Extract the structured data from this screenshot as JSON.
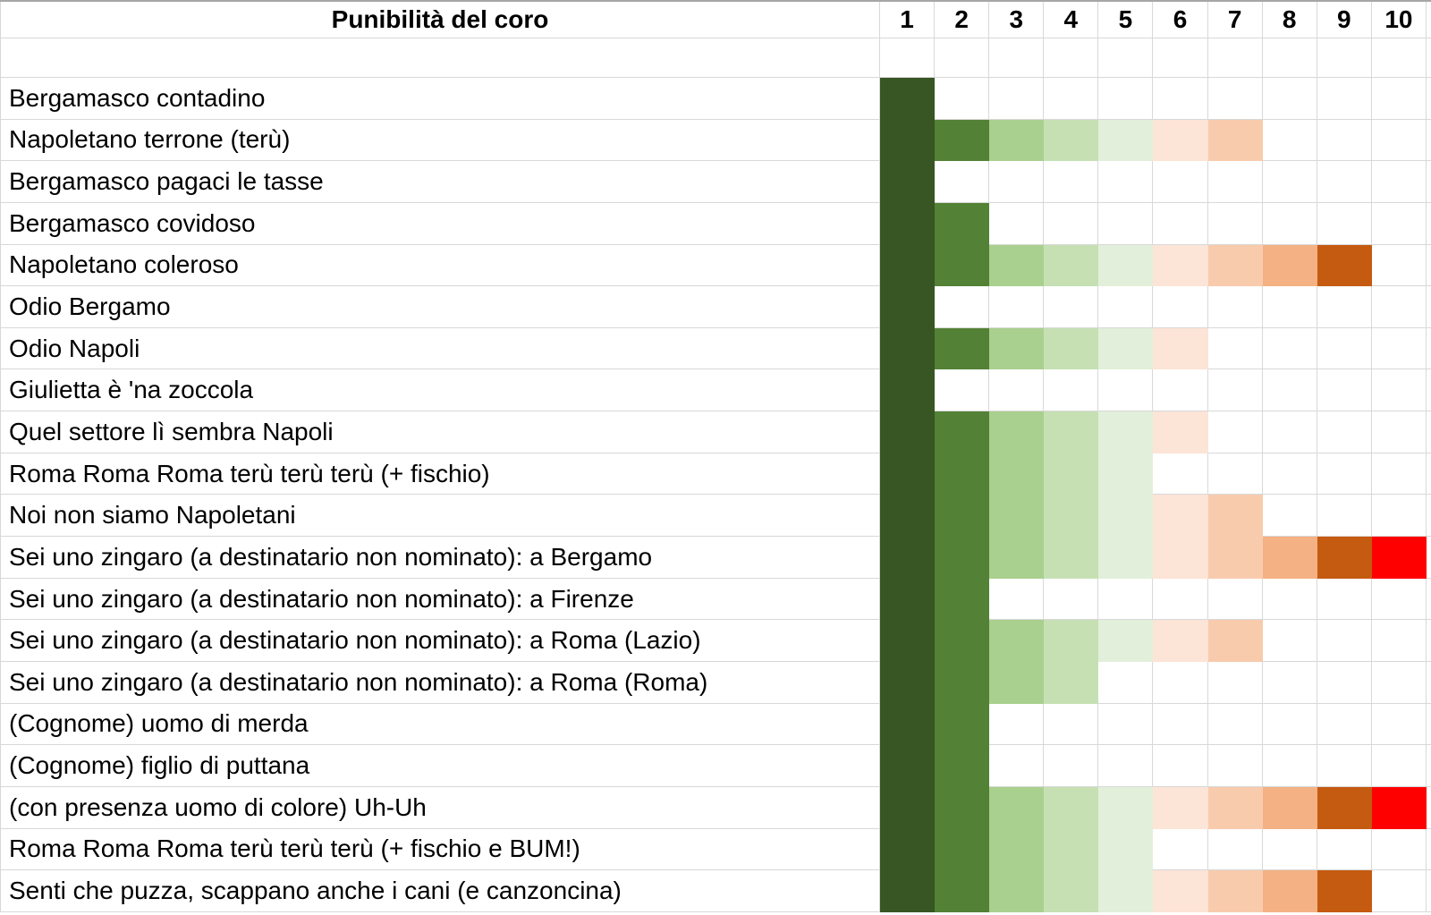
{
  "header": {
    "title": "Punibilità del coro",
    "columns": [
      "1",
      "2",
      "3",
      "4",
      "5",
      "6",
      "7",
      "8",
      "9",
      "10"
    ]
  },
  "rows": [
    {
      "label": "Bergamasco contadino",
      "value": 1
    },
    {
      "label": "Napoletano terrone (terù)",
      "value": 7
    },
    {
      "label": "Bergamasco pagaci le tasse",
      "value": 1
    },
    {
      "label": "Bergamasco covidoso",
      "value": 2
    },
    {
      "label": "Napoletano coleroso",
      "value": 9
    },
    {
      "label": "Odio Bergamo",
      "value": 1
    },
    {
      "label": "Odio Napoli",
      "value": 6
    },
    {
      "label": "Giulietta è 'na zoccola",
      "value": 1
    },
    {
      "label": "Quel settore lì sembra Napoli",
      "value": 6
    },
    {
      "label": "Roma Roma Roma terù terù terù (+ fischio)",
      "value": 5
    },
    {
      "label": "Noi non siamo Napoletani",
      "value": 7
    },
    {
      "label": "Sei uno zingaro (a destinatario non nominato): a Bergamo",
      "value": 10
    },
    {
      "label": "Sei uno zingaro (a destinatario non nominato): a Firenze",
      "value": 2
    },
    {
      "label": "Sei uno zingaro (a destinatario non nominato): a Roma (Lazio)",
      "value": 7
    },
    {
      "label": "Sei uno zingaro (a destinatario non nominato): a Roma (Roma)",
      "value": 4
    },
    {
      "label": "(Cognome) uomo di merda",
      "value": 2
    },
    {
      "label": "(Cognome) figlio di puttana",
      "value": 2
    },
    {
      "label": "(con presenza uomo di colore) Uh-Uh",
      "value": 10
    },
    {
      "label": "Roma Roma Roma terù terù terù (+ fischio e BUM!)",
      "value": 5
    },
    {
      "label": "Senti che puzza, scappano anche i cani (e canzoncina)",
      "value": 9
    }
  ],
  "colors": {
    "scale": [
      "#375623",
      "#538135",
      "#A9D08E",
      "#C6E0B4",
      "#E2EFDA",
      "#FCE4D6",
      "#F8CBAD",
      "#F4B183",
      "#C55A11",
      "#FF0000"
    ],
    "gridline": "#D8D8D8",
    "top_border": "#A6A6A6",
    "empty_cell": "#FFFFFF",
    "text": "#000000"
  },
  "chart_data": {
    "type": "heatmap",
    "title": "Punibilità del coro",
    "categories": [
      "Bergamasco contadino",
      "Napoletano terrone (terù)",
      "Bergamasco pagaci le tasse",
      "Bergamasco covidoso",
      "Napoletano coleroso",
      "Odio Bergamo",
      "Odio Napoli",
      "Giulietta è 'na zoccola",
      "Quel settore lì sembra Napoli",
      "Roma Roma Roma terù terù terù (+ fischio)",
      "Noi non siamo Napoletani",
      "Sei uno zingaro (a destinatario non nominato): a Bergamo",
      "Sei uno zingaro (a destinatario non nominato): a Firenze",
      "Sei uno zingaro (a destinatario non nominato): a Roma (Lazio)",
      "Sei uno zingaro (a destinatario non nominato): a Roma (Roma)",
      "(Cognome) uomo di merda",
      "(Cognome) figlio di puttana",
      "(con presenza uomo di colore) Uh-Uh",
      "Roma Roma Roma terù terù terù (+ fischio e BUM!)",
      "Senti che puzza, scappano anche i cani (e canzoncina)"
    ],
    "values": [
      1,
      7,
      1,
      2,
      9,
      1,
      6,
      1,
      6,
      5,
      7,
      10,
      2,
      7,
      4,
      2,
      2,
      10,
      5,
      9
    ],
    "x_ticks": [
      "1",
      "2",
      "3",
      "4",
      "5",
      "6",
      "7",
      "8",
      "9",
      "10"
    ],
    "xlim": [
      1,
      10
    ],
    "colorscale": [
      "#375623",
      "#538135",
      "#A9D08E",
      "#C6E0B4",
      "#E2EFDA",
      "#FCE4D6",
      "#F8CBAD",
      "#F4B183",
      "#C55A11",
      "#FF0000"
    ],
    "fill_rule": "each row is filled from column 1 through its value; cell at position n uses colorscale[n-1]",
    "grid": true,
    "legend_position": "none"
  }
}
